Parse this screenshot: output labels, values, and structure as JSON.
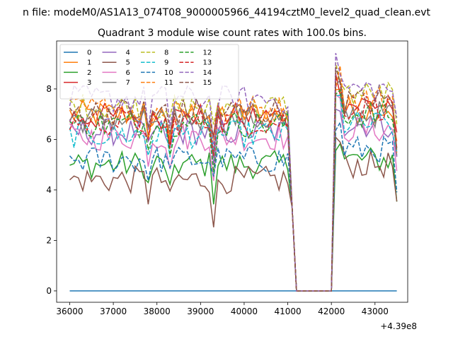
{
  "figure": {
    "suptitle": "n file: modeM0/AS1A13_074T08_9000005966_44194cztM0_level2_quad_clean.evt"
  },
  "chart_data": {
    "type": "line",
    "title": "Quadrant 3 module wise count rates with 100.0s bins.",
    "xlabel": "",
    "ylabel": "",
    "x_offset_label": "+4.39e8",
    "xlim": [
      35700,
      43750
    ],
    "ylim": [
      -0.45,
      9.9
    ],
    "x_ticks": [
      36000,
      37000,
      38000,
      39000,
      40000,
      41000,
      42000,
      43000
    ],
    "x_tick_labels": [
      "36000",
      "37000",
      "38000",
      "39000",
      "40000",
      "41000",
      "42000",
      "43000"
    ],
    "y_ticks": [
      0,
      2,
      4,
      6,
      8
    ],
    "y_tick_labels": [
      "0",
      "2",
      "4",
      "6",
      "8"
    ],
    "grid": false,
    "legend": {
      "placement": "upper-left",
      "columns": 4
    },
    "x_start": 36000,
    "x_step": 100,
    "gap_zero": [
      41200,
      42000
    ],
    "edge_fall": {
      "at": 41100,
      "value": 3.3
    },
    "series": [
      {
        "name": "0",
        "color": "#1f77b4",
        "style": "solid",
        "level1": 0,
        "level2": 0
      },
      {
        "name": "1",
        "color": "#ff7f0e",
        "style": "solid",
        "level1": 7.0,
        "level2": 7.2
      },
      {
        "name": "2",
        "color": "#2ca02c",
        "style": "solid",
        "level1": 5.0,
        "level2": 5.2
      },
      {
        "name": "3",
        "color": "#d62728",
        "style": "solid",
        "level1": 6.9,
        "level2": 7.4
      },
      {
        "name": "4",
        "color": "#9467bd",
        "style": "solid",
        "level1": 6.3,
        "level2": 6.6
      },
      {
        "name": "5",
        "color": "#8c564b",
        "style": "solid",
        "level1": 4.4,
        "level2": 5.0
      },
      {
        "name": "6",
        "color": "#e377c2",
        "style": "solid",
        "level1": 6.1,
        "level2": 6.4
      },
      {
        "name": "7",
        "color": "#7f7f7f",
        "style": "solid",
        "level1": 6.8,
        "level2": 7.0
      },
      {
        "name": "8",
        "color": "#bcbd22",
        "style": "dashed",
        "level1": 7.3,
        "level2": 7.8
      },
      {
        "name": "9",
        "color": "#17becf",
        "style": "dashed",
        "level1": 6.2,
        "level2": 6.6
      },
      {
        "name": "10",
        "color": "#1f77b4",
        "style": "dashed",
        "level1": 5.2,
        "level2": 5.6
      },
      {
        "name": "11",
        "color": "#ff7f0e",
        "style": "dashed",
        "level1": 7.2,
        "level2": 7.6
      },
      {
        "name": "12",
        "color": "#2ca02c",
        "style": "dashed",
        "level1": 6.6,
        "level2": 7.0
      },
      {
        "name": "13",
        "color": "#d62728",
        "style": "dashed",
        "level1": 6.7,
        "level2": 7.3
      },
      {
        "name": "14",
        "color": "#9467bd",
        "style": "dashed",
        "level1": 7.6,
        "level2": 8.0
      },
      {
        "name": "15",
        "color": "#8c564b",
        "style": "dashed",
        "level1": 7.1,
        "level2": 7.5
      }
    ]
  }
}
